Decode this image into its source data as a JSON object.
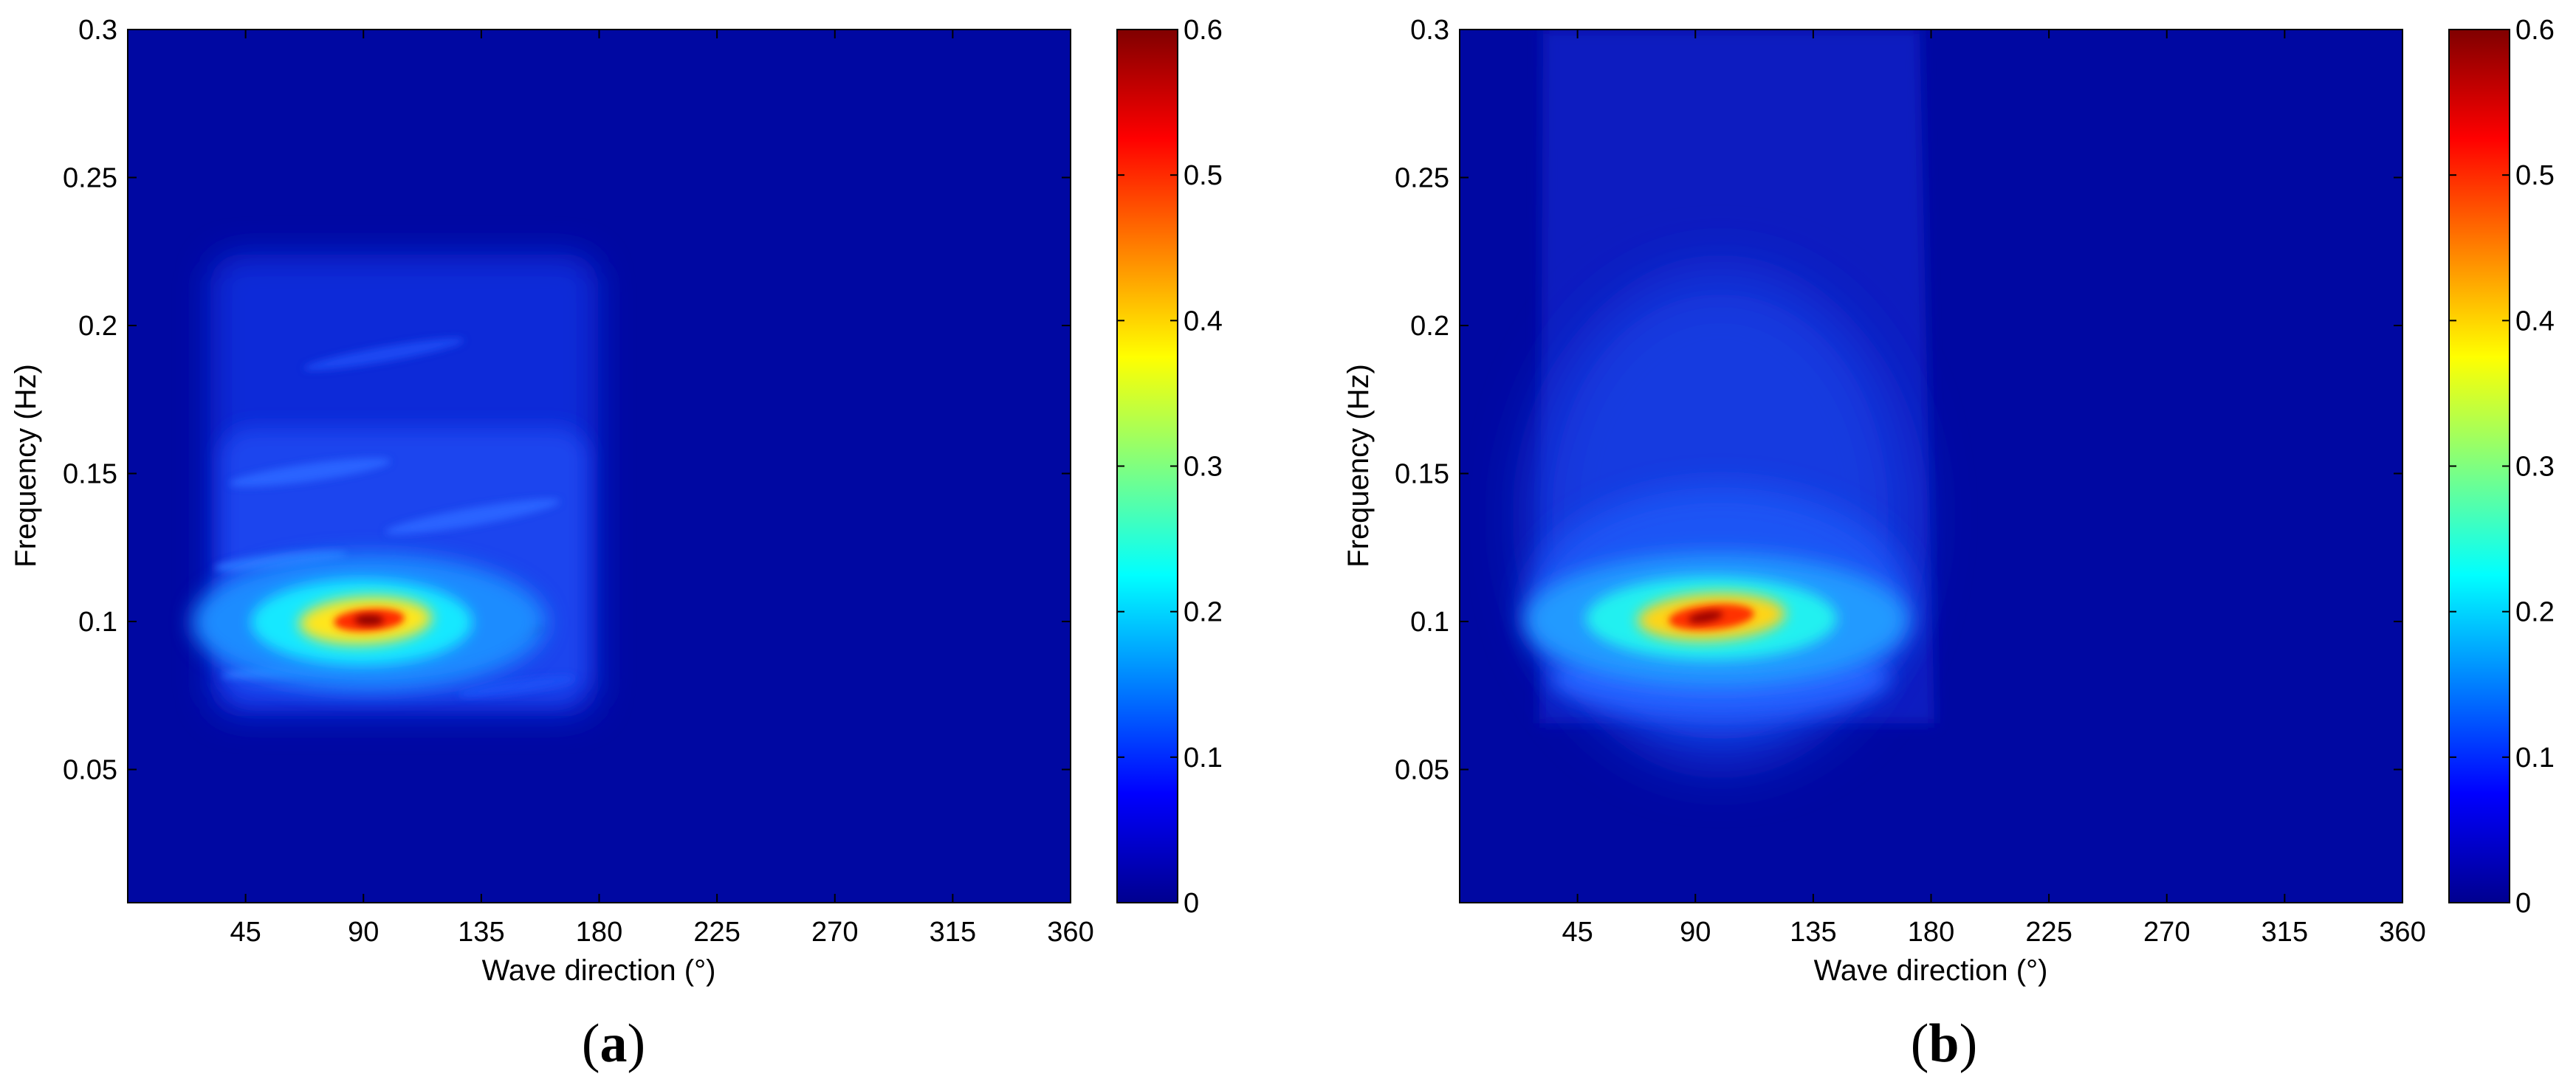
{
  "chart_data": [
    {
      "type": "heatmap",
      "panel_label": "a",
      "xlabel": "Wave direction (°)",
      "ylabel": "Frequency (Hz)",
      "xlim": [
        0,
        360
      ],
      "ylim": [
        0.005,
        0.3
      ],
      "xticks": [
        45,
        90,
        135,
        180,
        225,
        270,
        315,
        360
      ],
      "yticks": [
        0.05,
        0.1,
        0.15,
        0.2,
        0.25,
        0.3
      ],
      "colorbar": {
        "colormap": "jet",
        "range": [
          0,
          0.6
        ],
        "ticks": [
          0,
          0.1,
          0.2,
          0.3,
          0.4,
          0.5,
          0.6
        ]
      },
      "energy_region": {
        "direction_range": [
          30,
          185
        ],
        "frequency_range": [
          0.062,
          0.225
        ]
      },
      "peak": {
        "direction": 92,
        "frequency": 0.1,
        "value": 0.6
      },
      "background_value": 0.0
    },
    {
      "type": "heatmap",
      "panel_label": "b",
      "xlabel": "Wave direction (°)",
      "ylabel": "Frequency (Hz)",
      "xlim": [
        0,
        360
      ],
      "ylim": [
        0.005,
        0.3
      ],
      "xticks": [
        45,
        90,
        135,
        180,
        225,
        270,
        315,
        360
      ],
      "yticks": [
        0.05,
        0.1,
        0.15,
        0.2,
        0.25,
        0.3
      ],
      "colorbar": {
        "colormap": "jet",
        "range": [
          0,
          0.6
        ],
        "ticks": [
          0,
          0.1,
          0.2,
          0.3,
          0.4,
          0.5,
          0.6
        ]
      },
      "energy_region": {
        "direction_range": [
          30,
          185
        ],
        "frequency_range": [
          0.065,
          0.3
        ]
      },
      "peak": {
        "direction": 97,
        "frequency": 0.102,
        "value": 0.58
      },
      "background_value": 0.0
    }
  ]
}
